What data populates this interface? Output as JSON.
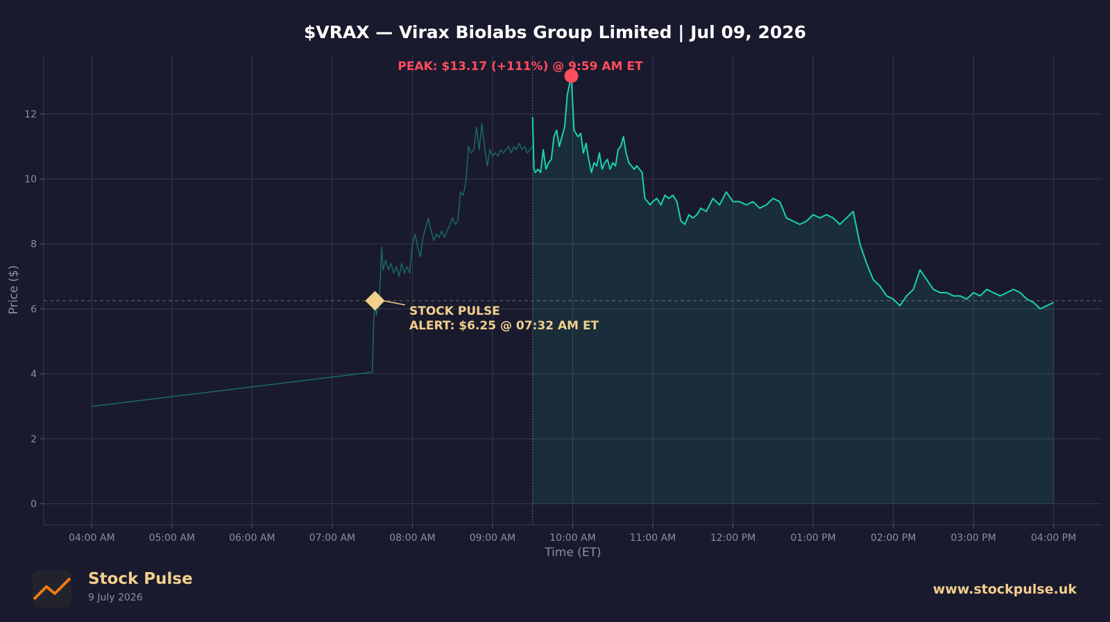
{
  "chart_data": {
    "type": "line",
    "title": "$VRAX — Virax Biolabs Group Limited  |  Jul 09, 2026",
    "xlabel": "Time (ET)",
    "ylabel": "Price ($)",
    "x_ticks": [
      "04:00 AM",
      "05:00 AM",
      "06:00 AM",
      "07:00 AM",
      "08:00 AM",
      "09:00 AM",
      "10:00 AM",
      "11:00 AM",
      "12:00 PM",
      "01:00 PM",
      "02:00 PM",
      "03:00 PM",
      "04:00 PM"
    ],
    "y_ticks": [
      "0",
      "2",
      "4",
      "6",
      "8",
      "10",
      "12"
    ],
    "ylim": [
      -0.65,
      13.8
    ],
    "xlim": [
      "03:24 AM",
      "04:36 PM"
    ],
    "grid": true,
    "market_open": "09:30 AM",
    "reference_price": 6.25,
    "series": [
      {
        "session": "premarket",
        "color": "#1a6b5e",
        "x": [
          "04:00 AM",
          "07:30 AM",
          "07:31 AM",
          "07:32 AM",
          "07:33 AM",
          "07:34 AM",
          "07:35 AM",
          "07:37 AM",
          "07:38 AM",
          "07:40 AM",
          "07:42 AM",
          "07:44 AM",
          "07:46 AM",
          "07:48 AM",
          "07:50 AM",
          "07:52 AM",
          "07:54 AM",
          "07:56 AM",
          "07:58 AM",
          "08:00 AM",
          "08:02 AM",
          "08:04 AM",
          "08:06 AM",
          "08:08 AM",
          "08:10 AM",
          "08:12 AM",
          "08:14 AM",
          "08:16 AM",
          "08:18 AM",
          "08:20 AM",
          "08:22 AM",
          "08:24 AM",
          "08:26 AM",
          "08:28 AM",
          "08:30 AM",
          "08:32 AM",
          "08:34 AM",
          "08:36 AM",
          "08:38 AM",
          "08:40 AM",
          "08:42 AM",
          "08:44 AM",
          "08:46 AM",
          "08:48 AM",
          "08:50 AM",
          "08:52 AM",
          "08:54 AM",
          "08:56 AM",
          "08:58 AM",
          "09:00 AM",
          "09:02 AM",
          "09:04 AM",
          "09:06 AM",
          "09:08 AM",
          "09:10 AM",
          "09:12 AM",
          "09:14 AM",
          "09:16 AM",
          "09:18 AM",
          "09:20 AM",
          "09:22 AM",
          "09:24 AM",
          "09:26 AM",
          "09:28 AM",
          "09:30 AM"
        ],
        "values": [
          3.0,
          4.05,
          5.6,
          6.25,
          5.8,
          6.1,
          6.0,
          7.9,
          7.2,
          7.5,
          7.2,
          7.4,
          7.1,
          7.3,
          7.0,
          7.4,
          7.1,
          7.3,
          7.1,
          8.0,
          8.3,
          7.9,
          7.6,
          8.2,
          8.5,
          8.8,
          8.4,
          8.1,
          8.3,
          8.2,
          8.4,
          8.2,
          8.4,
          8.6,
          8.8,
          8.6,
          8.7,
          9.6,
          9.5,
          9.9,
          11.0,
          10.8,
          10.9,
          11.6,
          10.9,
          11.7,
          11.0,
          10.4,
          10.9,
          10.7,
          10.8,
          10.7,
          10.9,
          10.8,
          10.9,
          11.0,
          10.8,
          11.0,
          10.9,
          11.1,
          10.9,
          11.0,
          10.8,
          10.9,
          11.0
        ]
      },
      {
        "session": "regular",
        "color": "#19d3b0",
        "x": [
          "09:30 AM",
          "09:31 AM",
          "09:32 AM",
          "09:34 AM",
          "09:36 AM",
          "09:38 AM",
          "09:40 AM",
          "09:42 AM",
          "09:44 AM",
          "09:46 AM",
          "09:48 AM",
          "09:50 AM",
          "09:52 AM",
          "09:54 AM",
          "09:56 AM",
          "09:59 AM",
          "10:01 AM",
          "10:04 AM",
          "10:06 AM",
          "10:08 AM",
          "10:10 AM",
          "10:12 AM",
          "10:14 AM",
          "10:16 AM",
          "10:18 AM",
          "10:20 AM",
          "10:22 AM",
          "10:24 AM",
          "10:26 AM",
          "10:28 AM",
          "10:30 AM",
          "10:32 AM",
          "10:34 AM",
          "10:36 AM",
          "10:38 AM",
          "10:40 AM",
          "10:42 AM",
          "10:44 AM",
          "10:46 AM",
          "10:48 AM",
          "10:50 AM",
          "10:52 AM",
          "10:54 AM",
          "10:56 AM",
          "10:58 AM",
          "11:00 AM",
          "11:03 AM",
          "11:06 AM",
          "11:09 AM",
          "11:12 AM",
          "11:15 AM",
          "11:18 AM",
          "11:21 AM",
          "11:24 AM",
          "11:27 AM",
          "11:30 AM",
          "11:33 AM",
          "11:36 AM",
          "11:40 AM",
          "11:45 AM",
          "11:50 AM",
          "11:55 AM",
          "12:00 PM",
          "12:05 PM",
          "12:10 PM",
          "12:15 PM",
          "12:20 PM",
          "12:25 PM",
          "12:30 PM",
          "12:35 PM",
          "12:40 PM",
          "12:45 PM",
          "12:50 PM",
          "12:55 PM",
          "01:00 PM",
          "01:05 PM",
          "01:10 PM",
          "01:15 PM",
          "01:20 PM",
          "01:25 PM",
          "01:30 PM",
          "01:35 PM",
          "01:40 PM",
          "01:45 PM",
          "01:50 PM",
          "01:55 PM",
          "02:00 PM",
          "02:05 PM",
          "02:10 PM",
          "02:15 PM",
          "02:20 PM",
          "02:25 PM",
          "02:30 PM",
          "02:35 PM",
          "02:40 PM",
          "02:45 PM",
          "02:50 PM",
          "02:55 PM",
          "03:00 PM",
          "03:05 PM",
          "03:10 PM",
          "03:15 PM",
          "03:20 PM",
          "03:25 PM",
          "03:30 PM",
          "03:35 PM",
          "03:40 PM",
          "03:45 PM",
          "03:50 PM",
          "03:55 PM",
          "04:00 PM"
        ],
        "values": [
          11.9,
          10.3,
          10.2,
          10.3,
          10.2,
          10.9,
          10.3,
          10.5,
          10.6,
          11.3,
          11.5,
          11.0,
          11.3,
          11.6,
          12.6,
          13.17,
          11.5,
          11.3,
          11.4,
          10.8,
          11.1,
          10.6,
          10.2,
          10.5,
          10.4,
          10.8,
          10.3,
          10.5,
          10.6,
          10.3,
          10.5,
          10.4,
          10.9,
          11.0,
          11.3,
          10.8,
          10.5,
          10.4,
          10.3,
          10.4,
          10.3,
          10.2,
          9.4,
          9.3,
          9.2,
          9.3,
          9.4,
          9.2,
          9.5,
          9.4,
          9.5,
          9.3,
          8.7,
          8.6,
          8.9,
          8.8,
          8.9,
          9.1,
          9.0,
          9.4,
          9.2,
          9.6,
          9.3,
          9.3,
          9.2,
          9.3,
          9.1,
          9.2,
          9.4,
          9.3,
          8.8,
          8.7,
          8.6,
          8.7,
          8.9,
          8.8,
          8.9,
          8.8,
          8.6,
          8.8,
          9.0,
          8.0,
          7.4,
          6.9,
          6.7,
          6.4,
          6.3,
          6.1,
          6.4,
          6.6,
          7.2,
          6.9,
          6.6,
          6.5,
          6.5,
          6.4,
          6.4,
          6.3,
          6.5,
          6.4,
          6.6,
          6.5,
          6.4,
          6.5,
          6.6,
          6.5,
          6.3,
          6.2,
          6.0,
          6.1,
          6.2
        ]
      }
    ],
    "peak": {
      "time": "09:59 AM",
      "value": 13.17,
      "label": "PEAK: $13.17 (+111%) @ 9:59 AM ET"
    },
    "alert": {
      "time": "07:32 AM",
      "value": 6.25,
      "label_line1": "STOCK PULSE",
      "label_line2": "ALERT: $6.25 @ 07:32 AM ET"
    }
  },
  "footer": {
    "brand": "Stock Pulse",
    "date": "9 July 2026",
    "website": "www.stockpulse.uk"
  },
  "colors": {
    "background": "#1a1a2e",
    "regular_line": "#19d3b0",
    "premarket_line": "#1a6b5e",
    "peak": "#ff4d5e",
    "alert": "#f2cf8c"
  }
}
